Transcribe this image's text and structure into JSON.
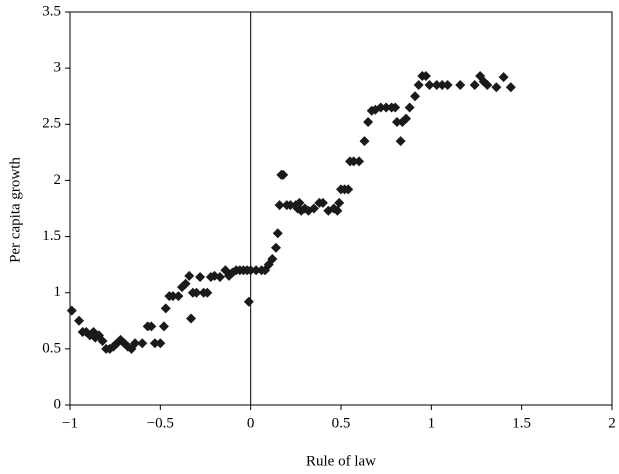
{
  "chart_data": {
    "type": "scatter",
    "xlabel": "Rule of law",
    "ylabel": "Per capita growth",
    "color": "#1a1a1a",
    "xlim": [
      -1,
      2
    ],
    "ylim": [
      0,
      3.5
    ],
    "xticks": [
      {
        "value": -1,
        "label": "−1"
      },
      {
        "value": -0.5,
        "label": "−0.5"
      },
      0,
      0.5,
      1,
      1.5,
      2
    ],
    "yticks": [
      0,
      0.5,
      1,
      1.5,
      2,
      2.5,
      3,
      3.5
    ],
    "x": [
      -0.99,
      -0.95,
      -0.93,
      -0.91,
      -0.89,
      -0.87,
      -0.86,
      -0.84,
      -0.82,
      -0.8,
      -0.78,
      -0.76,
      -0.74,
      -0.72,
      -0.7,
      -0.68,
      -0.66,
      -0.64,
      -0.6,
      -0.57,
      -0.55,
      -0.53,
      -0.5,
      -0.48,
      -0.47,
      -0.45,
      -0.43,
      -0.4,
      -0.38,
      -0.36,
      -0.34,
      -0.33,
      -0.32,
      -0.3,
      -0.28,
      -0.26,
      -0.24,
      -0.22,
      -0.2,
      -0.17,
      -0.14,
      -0.12,
      -0.1,
      -0.08,
      -0.06,
      -0.04,
      -0.02,
      0.0,
      -0.01,
      0.03,
      0.06,
      0.08,
      0.1,
      0.12,
      0.14,
      0.15,
      0.16,
      0.17,
      0.18,
      0.2,
      0.22,
      0.25,
      0.26,
      0.27,
      0.28,
      0.3,
      0.32,
      0.35,
      0.38,
      0.4,
      0.43,
      0.46,
      0.48,
      0.49,
      0.5,
      0.52,
      0.54,
      0.55,
      0.57,
      0.6,
      0.63,
      0.65,
      0.67,
      0.69,
      0.72,
      0.75,
      0.78,
      0.8,
      0.81,
      0.83,
      0.84,
      0.86,
      0.88,
      0.91,
      0.93,
      0.95,
      0.97,
      0.99,
      1.03,
      1.06,
      1.09,
      1.16,
      1.24,
      1.27,
      1.29,
      1.31,
      1.36,
      1.4,
      1.44
    ],
    "values": [
      0.84,
      0.75,
      0.65,
      0.65,
      0.62,
      0.65,
      0.6,
      0.62,
      0.57,
      0.5,
      0.5,
      0.52,
      0.55,
      0.58,
      0.55,
      0.52,
      0.5,
      0.55,
      0.55,
      0.7,
      0.7,
      0.55,
      0.55,
      0.7,
      0.86,
      0.97,
      0.97,
      0.97,
      1.05,
      1.08,
      1.15,
      0.77,
      1.0,
      1.0,
      1.14,
      1.0,
      1.0,
      1.14,
      1.15,
      1.14,
      1.2,
      1.15,
      1.18,
      1.2,
      1.2,
      1.2,
      1.2,
      1.2,
      0.92,
      1.2,
      1.2,
      1.2,
      1.25,
      1.3,
      1.4,
      1.53,
      1.78,
      2.05,
      2.05,
      1.78,
      1.78,
      1.78,
      1.75,
      1.8,
      1.73,
      1.75,
      1.73,
      1.75,
      1.8,
      1.8,
      1.73,
      1.75,
      1.73,
      1.8,
      1.92,
      1.92,
      1.92,
      2.17,
      2.17,
      2.17,
      2.35,
      2.52,
      2.62,
      2.63,
      2.65,
      2.65,
      2.65,
      2.65,
      2.52,
      2.35,
      2.52,
      2.55,
      2.65,
      2.75,
      2.85,
      2.93,
      2.93,
      2.85,
      2.85,
      2.85,
      2.85,
      2.85,
      2.85,
      2.93,
      2.88,
      2.85,
      2.83,
      2.92,
      2.83
    ]
  }
}
